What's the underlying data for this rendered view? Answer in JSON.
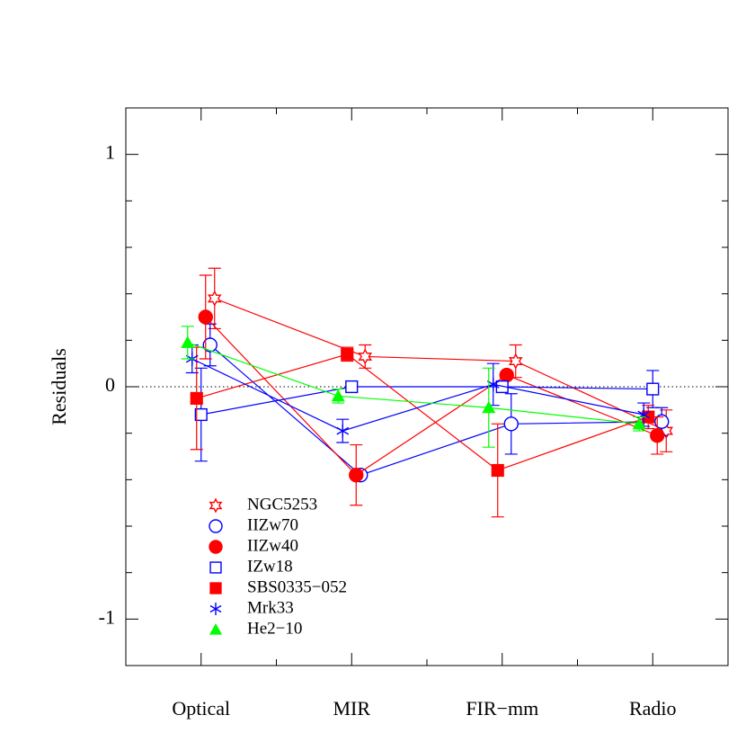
{
  "chart_data": {
    "type": "errorline",
    "ylabel": "Residuals",
    "categories": [
      "Optical",
      "MIR",
      "FIR−mm",
      "Radio"
    ],
    "ylim": [
      -1.2,
      1.2
    ],
    "yticks": [
      -1,
      0,
      1
    ],
    "yminorticks": [
      -1.2,
      -0.8,
      -0.6,
      -0.4,
      -0.2,
      0.2,
      0.4,
      0.6,
      0.8,
      1.2
    ],
    "hline": 0,
    "legend": "lower left",
    "series": [
      {
        "name": "NGC5253",
        "color": "#ff0000",
        "marker": "star",
        "values": [
          0.38,
          0.13,
          0.11,
          -0.19
        ],
        "errors": [
          0.13,
          0.05,
          0.07,
          0.09
        ]
      },
      {
        "name": "IIZw70",
        "color": "#0000ff",
        "marker": "circle-open",
        "values": [
          0.18,
          -0.38,
          -0.16,
          -0.15
        ],
        "errors": [
          0.09,
          null,
          0.13,
          0.06
        ]
      },
      {
        "name": "IIZw40",
        "color": "#ff0000",
        "marker": "circle",
        "values": [
          0.3,
          -0.38,
          0.05,
          -0.21
        ],
        "errors": [
          0.18,
          0.13,
          null,
          0.08
        ]
      },
      {
        "name": "IZw18",
        "color": "#0000ff",
        "marker": "square-open",
        "values": [
          -0.12,
          0,
          0,
          -0.01
        ],
        "errors": [
          0.2,
          null,
          null,
          0.08
        ]
      },
      {
        "name": "SBS0335−052",
        "color": "#ff0000",
        "marker": "square",
        "values": [
          -0.05,
          0.14,
          -0.36,
          -0.13
        ],
        "errors": [
          0.22,
          0.03,
          0.2,
          0.05
        ]
      },
      {
        "name": "Mrk33",
        "color": "#0000ff",
        "marker": "asterisk",
        "values": [
          0.12,
          -0.19,
          0.01,
          -0.12
        ],
        "errors": [
          0.06,
          0.05,
          0.09,
          0.05
        ]
      },
      {
        "name": "He2−10",
        "color": "#00ff00",
        "marker": "triangle",
        "values": [
          0.19,
          -0.04,
          -0.09,
          -0.16
        ],
        "errors": [
          0.07,
          0.03,
          0.17,
          0.03
        ]
      }
    ]
  }
}
